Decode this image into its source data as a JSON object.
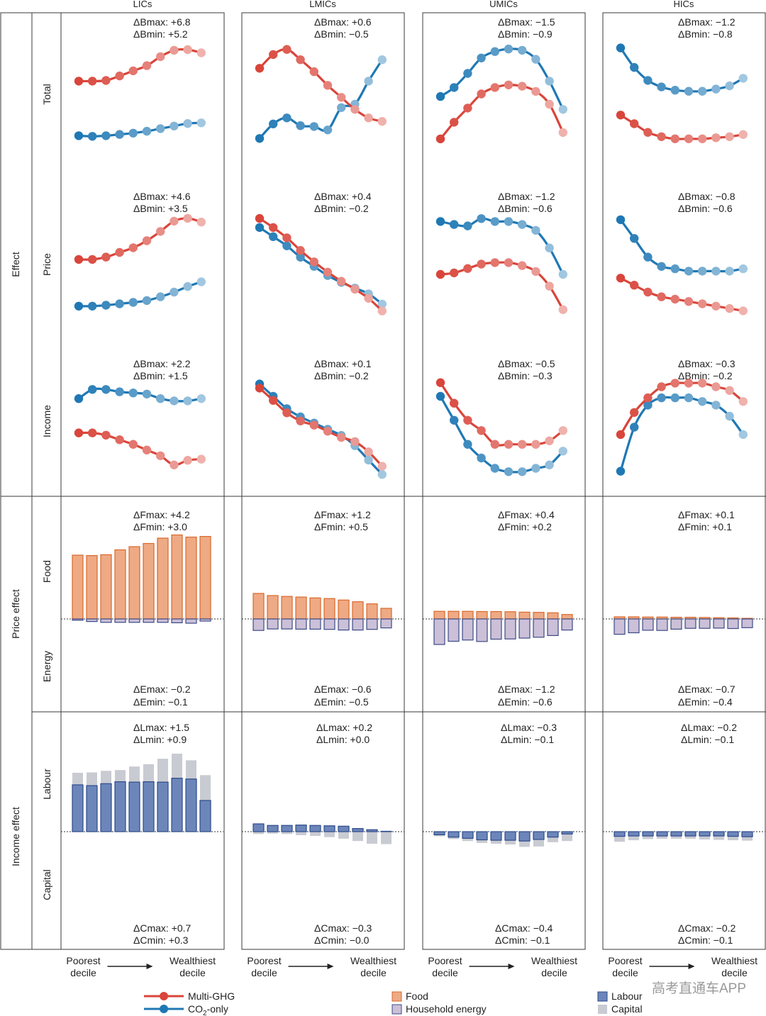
{
  "columns": [
    "LICs",
    "LMICs",
    "UMICs",
    "HICs"
  ],
  "rows": {
    "effect": "Effect",
    "price_effect": "Price effect",
    "income_effect": "Income effect"
  },
  "subrows": {
    "total": "Total",
    "price": "Price",
    "income": "Income",
    "food": "Food",
    "energy": "Energy",
    "labour": "Labour",
    "capital": "Capital"
  },
  "x_axis": {
    "left": "Poorest\ndecile",
    "right": "Wealthiest\ndecile"
  },
  "legend": {
    "multi_ghg": "Multi-GHG",
    "co2_prefix": "CO",
    "co2_sub": "2",
    "co2_suffix": "-only",
    "food": "Food",
    "household_energy": "Household energy",
    "labour": "Labour",
    "capital": "Capital"
  },
  "watermark": "高考直通车APP",
  "colors": {
    "multi_ghg": "#d9453a",
    "co2_only": "#1f78b4",
    "food_fill": "#eeaa84",
    "food_stroke": "#d9682c",
    "energy_fill": "#cbc0d8",
    "energy_stroke": "#3e4a86",
    "labour_fill": "#6d86ba",
    "labour_stroke": "#2c4a8a",
    "capital_fill": "#c9cbd2"
  },
  "annotations": {
    "total": [
      [
        "ΔBmax: +6.8",
        "ΔBmin: +5.2"
      ],
      [
        "ΔBmax: +0.6",
        "ΔBmin: −0.5"
      ],
      [
        "ΔBmax: −1.5",
        "ΔBmin: −0.9"
      ],
      [
        "ΔBmax: −1.2",
        "ΔBmin: −0.8"
      ]
    ],
    "price": [
      [
        "ΔBmax: +4.6",
        "ΔBmin: +3.5"
      ],
      [
        "ΔBmax: +0.4",
        "ΔBmin: −0.2"
      ],
      [
        "ΔBmax: −1.2",
        "ΔBmin: −0.6"
      ],
      [
        "ΔBmax: −0.8",
        "ΔBmin: −0.6"
      ]
    ],
    "income": [
      [
        "ΔBmax: +2.2",
        "ΔBmin: +1.5"
      ],
      [
        "ΔBmax: +0.1",
        "ΔBmin: −0.2"
      ],
      [
        "ΔBmax: −0.5",
        "ΔBmin: −0.3"
      ],
      [
        "ΔBmax: −0.3",
        "ΔBmin: −0.2"
      ]
    ],
    "food": [
      [
        "ΔFmax: +4.2",
        "ΔFmin: +3.0"
      ],
      [
        "ΔFmax: +1.2",
        "ΔFmin: +0.5"
      ],
      [
        "ΔFmax: +0.4",
        "ΔFmin: +0.2"
      ],
      [
        "ΔFmax: +0.1",
        "ΔFmin: +0.1"
      ]
    ],
    "energy": [
      [
        "ΔEmax: −0.2",
        "ΔEmin: −0.1"
      ],
      [
        "ΔEmax: −0.6",
        "ΔEmin: −0.5"
      ],
      [
        "ΔEmax: −1.2",
        "ΔEmin: −0.6"
      ],
      [
        "ΔEmax: −0.7",
        "ΔEmin: −0.4"
      ]
    ],
    "labour": [
      [
        "ΔLmax: +1.5",
        "ΔLmin: +0.9"
      ],
      [
        "ΔLmax: +0.2",
        "ΔLmin: +0.0"
      ],
      [
        "ΔLmax: −0.3",
        "ΔLmin: −0.1"
      ],
      [
        "ΔLmax: −0.2",
        "ΔLmin: −0.1"
      ]
    ],
    "capital": [
      [
        "ΔCmax: +0.7",
        "ΔCmin: +0.3"
      ],
      [
        "ΔCmax: −0.3",
        "ΔCmin: −0.0"
      ],
      [
        "ΔCmax: −0.4",
        "ΔCmin: −0.1"
      ],
      [
        "ΔCmax: −0.2",
        "ΔCmin: −0.1"
      ]
    ]
  },
  "chart_data": {
    "type": "line",
    "note_units": "percentage points (approximate, read from figure)",
    "deciles": [
      1,
      2,
      3,
      4,
      5,
      6,
      7,
      8,
      9,
      10
    ],
    "lines": {
      "total": [
        {
          "multi": [
            1.3,
            1.3,
            1.31,
            1.38,
            1.46,
            1.54,
            1.68,
            1.78,
            1.79,
            1.74
          ],
          "co2": [
            0.45,
            0.44,
            0.45,
            0.47,
            0.49,
            0.52,
            0.56,
            0.6,
            0.64,
            0.65
          ]
        },
        {
          "multi": [
            0.4,
            0.56,
            0.62,
            0.5,
            0.36,
            0.2,
            0.06,
            -0.08,
            -0.18,
            -0.22
          ],
          "co2": [
            -0.42,
            -0.25,
            -0.18,
            -0.27,
            -0.28,
            -0.32,
            -0.06,
            -0.02,
            0.25,
            0.5
          ]
        },
        {
          "multi": [
            -0.95,
            -0.82,
            -0.71,
            -0.6,
            -0.55,
            -0.53,
            -0.54,
            -0.58,
            -0.68,
            -0.9
          ],
          "co2": [
            -0.62,
            -0.55,
            -0.44,
            -0.32,
            -0.27,
            -0.25,
            -0.26,
            -0.33,
            -0.5,
            -0.72
          ]
        },
        {
          "multi": [
            -0.92,
            -1.0,
            -1.08,
            -1.12,
            -1.14,
            -1.14,
            -1.14,
            -1.13,
            -1.12,
            -1.1
          ],
          "co2": [
            -0.3,
            -0.48,
            -0.6,
            -0.66,
            -0.69,
            -0.7,
            -0.7,
            -0.68,
            -0.65,
            -0.58
          ]
        }
      ],
      "price": [
        {
          "multi": [
            2.0,
            2.0,
            2.05,
            2.15,
            2.25,
            2.4,
            2.6,
            2.82,
            2.88,
            2.8
          ],
          "co2": [
            1.0,
            1.0,
            1.02,
            1.05,
            1.08,
            1.12,
            1.2,
            1.3,
            1.42,
            1.52
          ]
        },
        {
          "multi": [
            0.3,
            0.22,
            0.13,
            0.02,
            -0.08,
            -0.17,
            -0.25,
            -0.32,
            -0.4,
            -0.51
          ],
          "co2": [
            0.22,
            0.14,
            0.06,
            -0.04,
            -0.12,
            -0.2,
            -0.26,
            -0.31,
            -0.36,
            -0.45
          ]
        },
        {
          "multi": [
            -0.82,
            -0.81,
            -0.78,
            -0.75,
            -0.74,
            -0.74,
            -0.76,
            -0.8,
            -0.9,
            -1.06
          ],
          "co2": [
            -0.46,
            -0.48,
            -0.49,
            -0.44,
            -0.46,
            -0.46,
            -0.48,
            -0.52,
            -0.64,
            -0.82
          ]
        },
        {
          "multi": [
            -0.56,
            -0.59,
            -0.62,
            -0.64,
            -0.65,
            -0.66,
            -0.67,
            -0.68,
            -0.69,
            -0.7
          ],
          "co2": [
            -0.31,
            -0.39,
            -0.47,
            -0.51,
            -0.52,
            -0.53,
            -0.53,
            -0.53,
            -0.53,
            -0.52
          ]
        }
      ],
      "income": [
        {
          "multi": [
            1.7,
            1.7,
            1.68,
            1.64,
            1.6,
            1.55,
            1.5,
            1.42,
            1.46,
            1.47
          ],
          "co2": [
            2.0,
            2.08,
            2.08,
            2.06,
            2.05,
            2.04,
            2.0,
            1.98,
            1.98,
            2.0
          ]
        },
        {
          "multi": [
            0.14,
            0.08,
            0.02,
            -0.02,
            -0.04,
            -0.07,
            -0.1,
            -0.12,
            -0.17,
            -0.24
          ],
          "co2": [
            0.16,
            0.1,
            0.04,
            0.0,
            -0.03,
            -0.06,
            -0.09,
            -0.14,
            -0.21,
            -0.28
          ]
        },
        {
          "multi": [
            -0.22,
            -0.28,
            -0.33,
            -0.36,
            -0.4,
            -0.4,
            -0.4,
            -0.4,
            -0.39,
            -0.36
          ],
          "co2": [
            -0.26,
            -0.33,
            -0.4,
            -0.44,
            -0.47,
            -0.48,
            -0.48,
            -0.47,
            -0.46,
            -0.42
          ]
        },
        {
          "multi": [
            -0.3,
            -0.24,
            -0.2,
            -0.17,
            -0.16,
            -0.16,
            -0.16,
            -0.17,
            -0.18,
            -0.21
          ],
          "co2": [
            -0.4,
            -0.28,
            -0.22,
            -0.2,
            -0.2,
            -0.2,
            -0.21,
            -0.22,
            -0.25,
            -0.3
          ]
        }
      ]
    },
    "bars": {
      "food": [
        [
          3.0,
          2.98,
          3.02,
          3.25,
          3.4,
          3.55,
          3.8,
          3.95,
          3.85,
          3.88
        ],
        [
          1.2,
          1.1,
          1.06,
          1.03,
          0.99,
          0.96,
          0.89,
          0.81,
          0.71,
          0.5
        ],
        [
          0.36,
          0.36,
          0.36,
          0.35,
          0.35,
          0.34,
          0.32,
          0.31,
          0.29,
          0.21
        ],
        [
          0.1,
          0.1,
          0.09,
          0.09,
          0.08,
          0.08,
          0.07,
          0.06,
          0.05,
          0.03
        ]
      ],
      "energy": [
        [
          -0.06,
          -0.12,
          -0.16,
          -0.16,
          -0.16,
          -0.16,
          -0.16,
          -0.18,
          -0.2,
          -0.1
        ],
        [
          -0.54,
          -0.47,
          -0.47,
          -0.48,
          -0.48,
          -0.49,
          -0.52,
          -0.52,
          -0.49,
          -0.42
        ],
        [
          -1.2,
          -1.05,
          -0.99,
          -1.06,
          -0.95,
          -0.94,
          -0.9,
          -0.86,
          -0.78,
          -0.52
        ],
        [
          -0.72,
          -0.65,
          -0.53,
          -0.54,
          -0.48,
          -0.44,
          -0.44,
          -0.43,
          -0.45,
          -0.41
        ]
      ],
      "labour": [
        [
          1.2,
          1.18,
          1.23,
          1.28,
          1.27,
          1.28,
          1.27,
          1.37,
          1.35,
          0.8
        ],
        [
          0.2,
          0.16,
          0.16,
          0.17,
          0.16,
          0.15,
          0.14,
          0.08,
          0.05,
          0.01
        ],
        [
          -0.08,
          -0.14,
          -0.17,
          -0.21,
          -0.22,
          -0.22,
          -0.24,
          -0.2,
          -0.14,
          -0.06
        ],
        [
          -0.12,
          -0.11,
          -0.11,
          -0.11,
          -0.11,
          -0.11,
          -0.11,
          -0.11,
          -0.12,
          -0.13
        ]
      ],
      "capital": [
        [
          0.31,
          0.34,
          0.33,
          0.3,
          0.4,
          0.45,
          0.6,
          0.63,
          0.48,
          0.65
        ],
        [
          -0.06,
          -0.05,
          -0.06,
          -0.09,
          -0.11,
          -0.14,
          -0.18,
          -0.24,
          -0.31,
          -0.32
        ],
        [
          -0.04,
          -0.05,
          -0.07,
          -0.08,
          -0.09,
          -0.11,
          -0.15,
          -0.18,
          -0.13,
          -0.18
        ],
        [
          -0.14,
          -0.11,
          -0.08,
          -0.07,
          -0.07,
          -0.07,
          -0.09,
          -0.1,
          -0.1,
          -0.1
        ]
      ]
    }
  }
}
